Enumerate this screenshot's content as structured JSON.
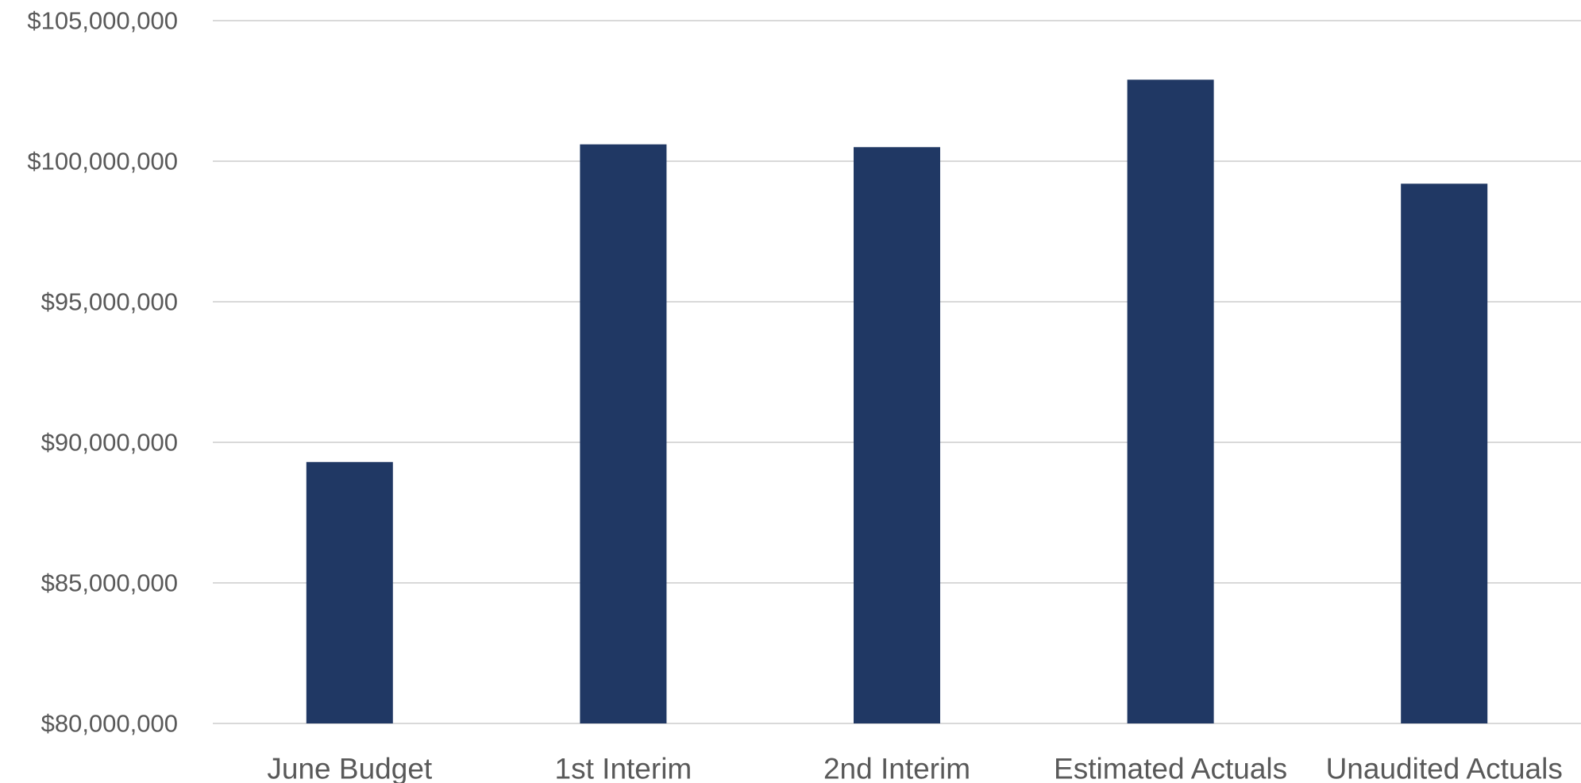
{
  "chart_data": {
    "type": "bar",
    "categories": [
      "June Budget",
      "1st Interim",
      "2nd Interim",
      "Estimated Actuals",
      "Unaudited Actuals"
    ],
    "values": [
      89300000,
      100600000,
      100500000,
      102900000,
      99200000
    ],
    "ylim": [
      80000000,
      105000000
    ],
    "yticks": [
      80000000,
      85000000,
      90000000,
      95000000,
      100000000,
      105000000
    ],
    "ytick_labels": [
      "$80,000,000",
      "$85,000,000",
      "$90,000,000",
      "$95,000,000",
      "$100,000,000",
      "$105,000,000"
    ],
    "title": "",
    "xlabel": "",
    "ylabel": "",
    "grid": true,
    "legend": "none",
    "bar_color": "#203864",
    "grid_color": "#d9d9d9",
    "text_color": "#595959"
  }
}
